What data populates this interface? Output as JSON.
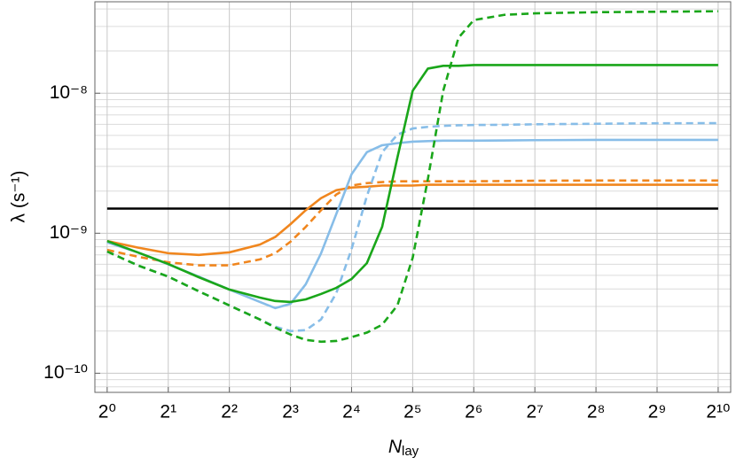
{
  "chart_data": {
    "type": "line",
    "xlabel": "N",
    "xlabel_sub": "lay",
    "ylabel": "λ (s⁻¹)",
    "xlog": 2,
    "ylog": 10,
    "grid": true,
    "xlim": [
      0.87,
      1180
    ],
    "ylim": [
      7.3e-11,
      4.5e-08
    ],
    "xticks": [
      {
        "value": 1,
        "label": "2⁰"
      },
      {
        "value": 2,
        "label": "2¹"
      },
      {
        "value": 4,
        "label": "2²"
      },
      {
        "value": 8,
        "label": "2³"
      },
      {
        "value": 16,
        "label": "2⁴"
      },
      {
        "value": 32,
        "label": "2⁵"
      },
      {
        "value": 64,
        "label": "2⁶"
      },
      {
        "value": 128,
        "label": "2⁷"
      },
      {
        "value": 256,
        "label": "2⁸"
      },
      {
        "value": 512,
        "label": "2⁹"
      },
      {
        "value": 1024,
        "label": "2¹⁰"
      }
    ],
    "yticks": [
      {
        "value": 1e-10,
        "label": "10⁻¹⁰"
      },
      {
        "value": 1e-09,
        "label": "10⁻⁹"
      },
      {
        "value": 1e-08,
        "label": "10⁻⁸"
      }
    ],
    "yminorticks": [
      8e-11,
      9e-11,
      2e-10,
      3e-10,
      4e-10,
      5e-10,
      6e-10,
      7e-10,
      8e-10,
      9e-10,
      2e-09,
      3e-09,
      4e-09,
      5e-09,
      6e-09,
      7e-09,
      8e-09,
      9e-09,
      2e-08,
      3e-08,
      4e-08
    ],
    "x": [
      1,
      1.414,
      2,
      2.828,
      4,
      5.657,
      6.727,
      8,
      9.514,
      11.31,
      13.45,
      16,
      19.03,
      22.63,
      26.91,
      32,
      38.05,
      45.25,
      53.82,
      64,
      90.51,
      128,
      256,
      512,
      1024
    ],
    "hlines": [
      {
        "value": 1.5e-09,
        "color": "#000000"
      }
    ],
    "series": [
      {
        "color": "#f0861e",
        "dash": false,
        "values": [
          8.8e-10,
          7.9e-10,
          7.2e-10,
          7e-10,
          7.3e-10,
          8.3e-10,
          9.4e-10,
          1.16e-09,
          1.46e-09,
          1.78e-09,
          2.03e-09,
          2.12e-09,
          2.15e-09,
          2.19e-09,
          2.19e-09,
          2.19e-09,
          2.22e-09,
          2.22e-09,
          2.22e-09,
          2.22e-09,
          2.22e-09,
          2.22e-09,
          2.22e-09,
          2.22e-09,
          2.22e-09
        ]
      },
      {
        "color": "#f0861e",
        "dash": true,
        "values": [
          7.6e-10,
          6.8e-10,
          6.2e-10,
          5.9e-10,
          5.9e-10,
          6.5e-10,
          7.2e-10,
          8.7e-10,
          1.11e-09,
          1.46e-09,
          1.89e-09,
          2.19e-09,
          2.28e-09,
          2.32e-09,
          2.35e-09,
          2.35e-09,
          2.35e-09,
          2.35e-09,
          2.35e-09,
          2.35e-09,
          2.36e-09,
          2.37e-09,
          2.38e-09,
          2.38e-09,
          2.38e-09
        ]
      },
      {
        "color": "#87bde8",
        "dash": false,
        "values": [
          8.6e-10,
          7.3e-10,
          6e-10,
          4.9e-10,
          3.96e-10,
          3.23e-10,
          2.92e-10,
          3.13e-10,
          4.32e-10,
          7.17e-10,
          1.37e-09,
          2.64e-09,
          3.79e-09,
          4.25e-09,
          4.4e-09,
          4.51e-09,
          4.55e-09,
          4.58e-09,
          4.58e-09,
          4.58e-09,
          4.6e-09,
          4.62e-09,
          4.64e-09,
          4.64e-09,
          4.64e-09
        ]
      },
      {
        "color": "#87bde8",
        "dash": true,
        "values": [
          7.4e-10,
          5.9e-10,
          4.9e-10,
          3.85e-10,
          3.05e-10,
          2.42e-10,
          2.15e-10,
          2e-10,
          2.03e-10,
          2.42e-10,
          3.73e-10,
          7.7e-10,
          1.84e-09,
          3.79e-09,
          5.06e-09,
          5.6e-09,
          5.75e-09,
          5.85e-09,
          5.9e-09,
          5.93e-09,
          5.95e-09,
          6e-09,
          6.05e-09,
          6.1e-09,
          6.11e-09
        ]
      },
      {
        "color": "#1aa61a",
        "dash": false,
        "values": [
          8.8e-10,
          7.3e-10,
          6.03e-10,
          4.85e-10,
          3.96e-10,
          3.47e-10,
          3.28e-10,
          3.23e-10,
          3.37e-10,
          3.68e-10,
          4.07e-10,
          4.71e-10,
          6.11e-10,
          1.11e-09,
          3.47e-09,
          1.04e-08,
          1.5e-08,
          1.57e-08,
          1.57e-08,
          1.59e-08,
          1.59e-08,
          1.59e-08,
          1.59e-08,
          1.59e-08,
          1.59e-08
        ]
      },
      {
        "color": "#1aa61a",
        "dash": true,
        "values": [
          7.4e-10,
          5.9e-10,
          4.9e-10,
          3.85e-10,
          3.05e-10,
          2.42e-10,
          2.12e-10,
          1.89e-10,
          1.73e-10,
          1.68e-10,
          1.7e-10,
          1.81e-10,
          1.95e-10,
          2.22e-10,
          3.05e-10,
          6.67e-10,
          2.45e-09,
          1.04e-08,
          2.49e-08,
          3.33e-08,
          3.63e-08,
          3.72e-08,
          3.79e-08,
          3.82e-08,
          3.85e-08
        ]
      }
    ]
  }
}
